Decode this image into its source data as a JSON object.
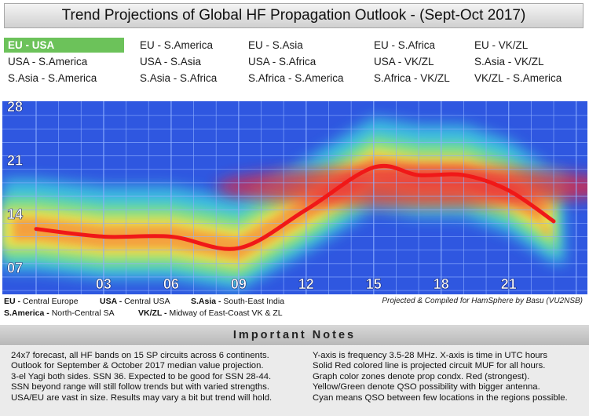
{
  "title": "Trend Projections of Global HF Propagation Outlook - (Sept-Oct 2017)",
  "circuits": [
    [
      "EU - USA",
      "EU - S.America",
      "EU - S.Asia",
      "EU - S.Africa",
      "EU - VK/ZL"
    ],
    [
      "USA - S.America",
      "USA - S.Asia",
      "USA - S.Africa",
      "USA - VK/ZL",
      "S.Asia - VK/ZL"
    ],
    [
      "S.Asia - S.America",
      "S.Asia - S.Africa",
      "S.Africa - S.America",
      "S.Africa - VK/ZL",
      "VK/ZL - S.America"
    ]
  ],
  "active_circuit": "EU - USA",
  "colors": {
    "active_bg": "#6cc25a",
    "chart_bg": "#2f57e0",
    "grid": "#8fb0ff",
    "muf_line": "#f01818",
    "axis_text": "#ffffff"
  },
  "chart_data": {
    "type": "line",
    "title": "",
    "xlabel": "",
    "ylabel": "",
    "x_ticks": [
      "03",
      "06",
      "09",
      "12",
      "15",
      "18",
      "21"
    ],
    "y_ticks": [
      "07",
      "14",
      "21",
      "28"
    ],
    "xlim": [
      -1.5,
      24.5
    ],
    "ylim": [
      3.5,
      28.6
    ],
    "muf": {
      "x": [
        0,
        3,
        6,
        9,
        12,
        15,
        17,
        19,
        21,
        23
      ],
      "y": [
        12.0,
        11.0,
        11.0,
        9.5,
        14.5,
        20.0,
        19.0,
        19.0,
        17.0,
        13.0
      ]
    },
    "zones": "Red (strongest), Yellow/Green, Cyan"
  },
  "legend": [
    {
      "key": "EU -",
      "value": " Central Europe"
    },
    {
      "key": "USA -",
      "value": " Central USA"
    },
    {
      "key": "S.Asia -",
      "value": " South-East India"
    },
    {
      "key": "S.America -",
      "value": " North-Central SA"
    },
    {
      "key": "VK/ZL -",
      "value": " Midway of East-Coast VK & ZL"
    }
  ],
  "credit": "Projected & Compiled for HamSphere by Basu (VU2NSB)",
  "notes_title": "Important   Notes",
  "notes_left": [
    "24x7 forecast, all HF bands on 15 SP circuits across 6 continents.",
    "Outlook for September & October 2017 median value projection.",
    "3-el Yagi both sides. SSN 36. Expected to be good for SSN 28-44.",
    "SSN beyond range will still follow trends but with varied strengths.",
    "USA/EU are vast in size. Results may vary a bit but trend will hold."
  ],
  "notes_right": [
    "Y-axis is frequency 3.5-28 MHz. X-axis is time in UTC hours",
    "Solid Red colored line is projected circuit MUF for all hours.",
    "Graph color zones denote prop condx. Red (strongest).",
    "Yellow/Green denote QSO possibility with bigger antenna.",
    "Cyan means QSO between few locations in the regions possible."
  ]
}
